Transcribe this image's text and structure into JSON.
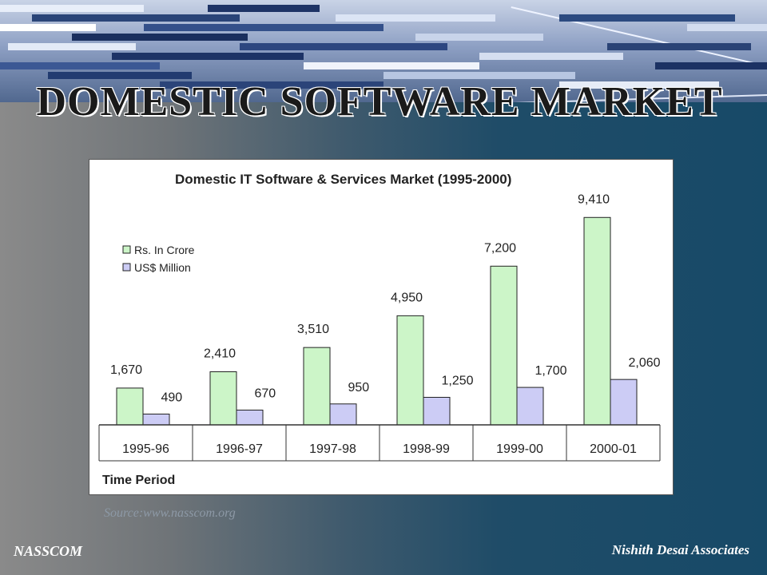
{
  "slide": {
    "title": "DOMESTIC SOFTWARE MARKET",
    "source": "Source:www.nasscom.org",
    "footer_left": "NASSCOM",
    "footer_right": "Nishith Desai Associates"
  },
  "colors": {
    "series1_fill": "#ccf5c8",
    "series2_fill": "#ccccf5",
    "bar_stroke": "#222222"
  },
  "chart_data": {
    "type": "bar",
    "title": "Domestic IT Software & Services Market (1995-2000)",
    "xlabel": "Time Period",
    "ylabel": "",
    "categories": [
      "1995-96",
      "1996-97",
      "1997-98",
      "1998-99",
      "1999-00",
      "2000-01"
    ],
    "series": [
      {
        "name": "Rs. In Crore",
        "values": [
          1670,
          2410,
          3510,
          4950,
          7200,
          9410
        ],
        "labels": [
          "1,670",
          "2,410",
          "3,510",
          "4,950",
          "7,200",
          "9,410"
        ]
      },
      {
        "name": "US$ Million",
        "values": [
          490,
          670,
          950,
          1250,
          1700,
          2060
        ],
        "labels": [
          "490",
          "670",
          "950",
          "1,250",
          "1,700",
          "2,060"
        ]
      }
    ],
    "ylim": [
      0,
      10000
    ],
    "grid": false,
    "legend": "top-left"
  }
}
